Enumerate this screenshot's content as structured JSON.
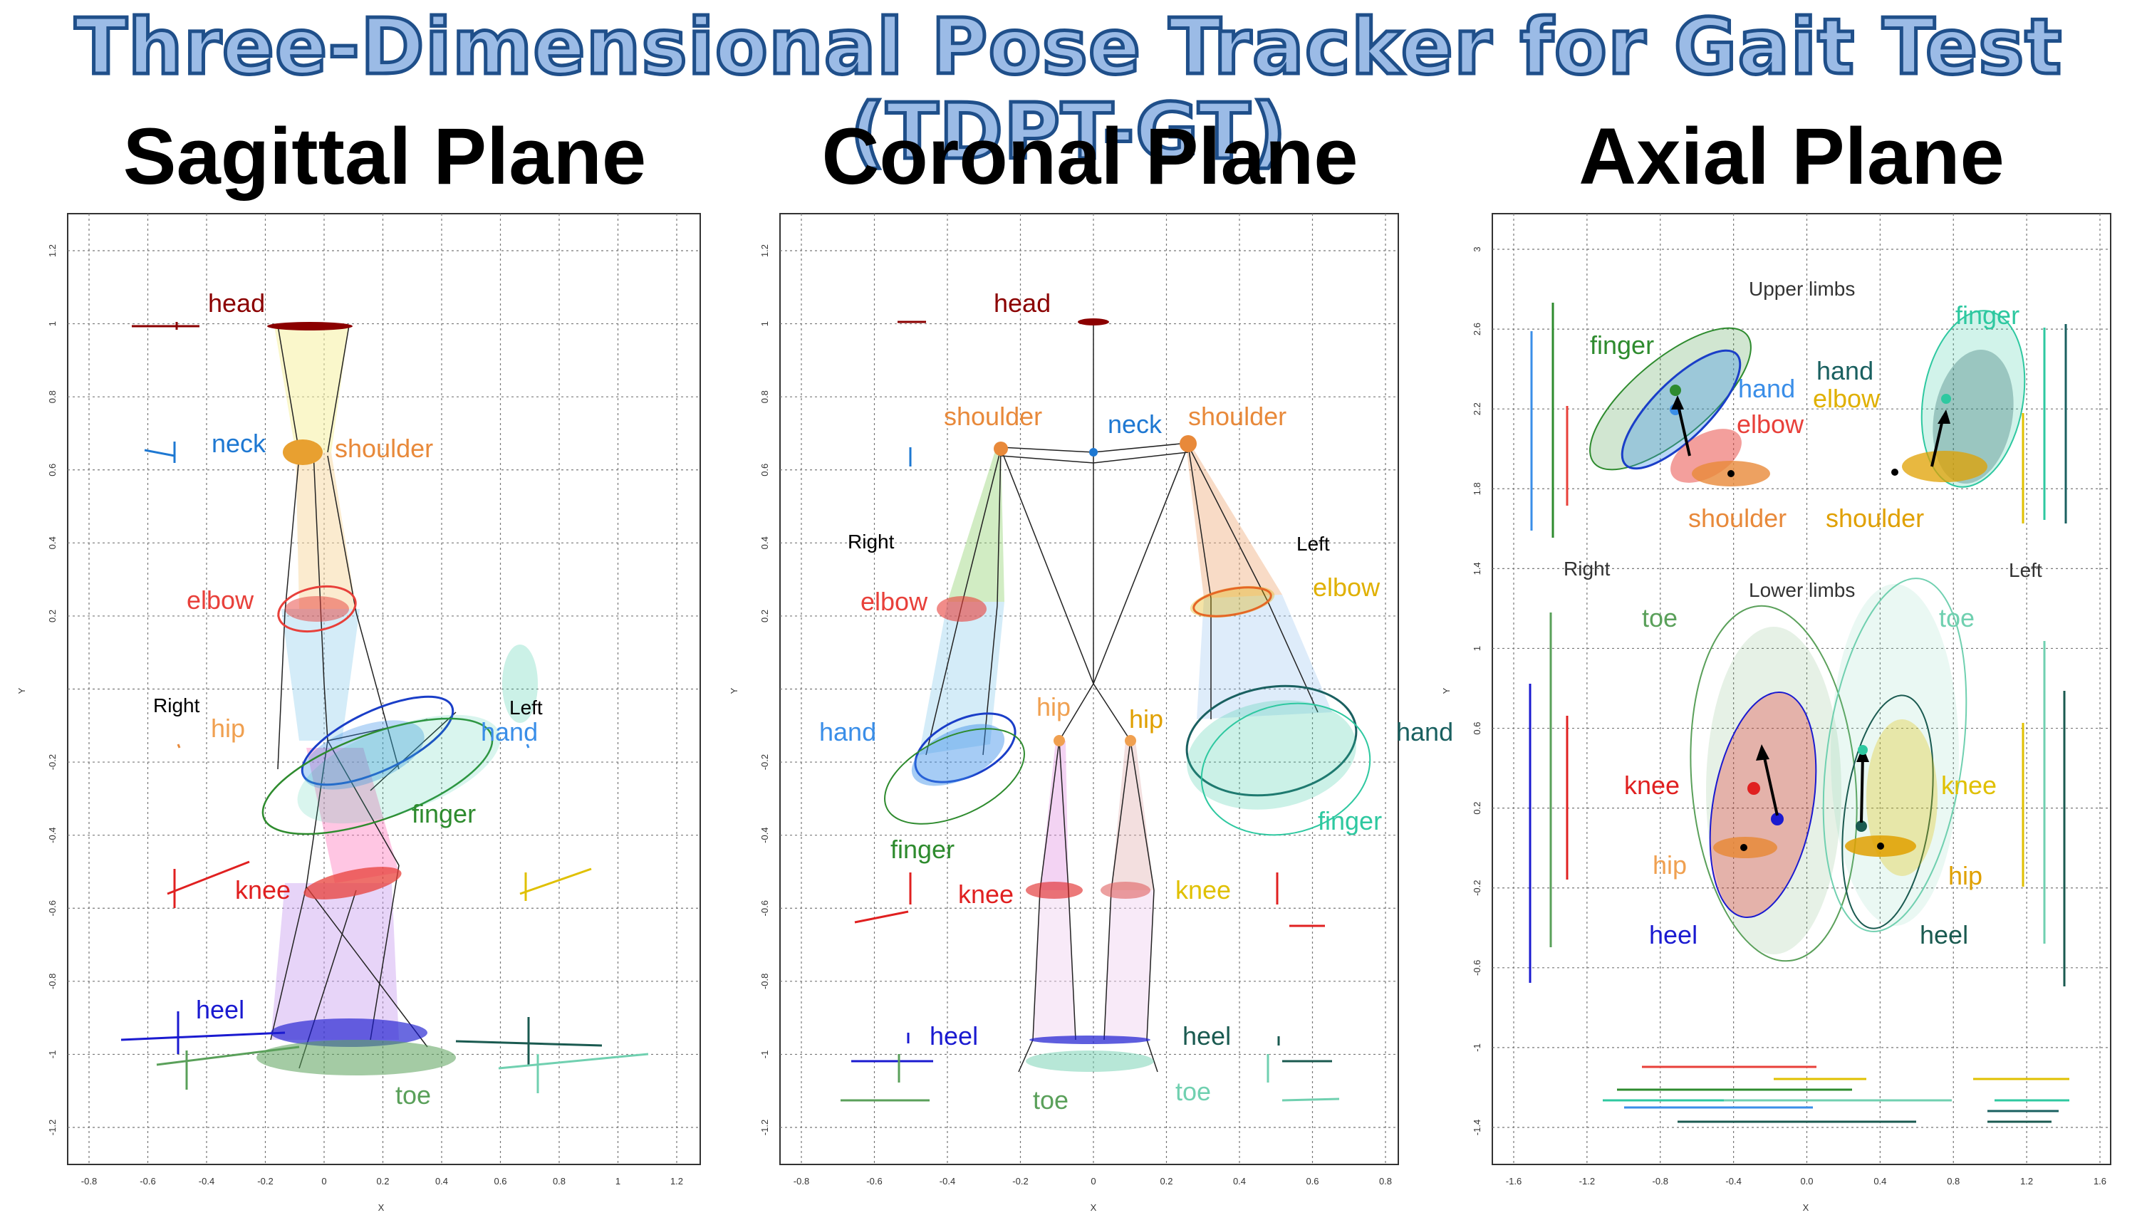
{
  "title": "Three-Dimensional Pose Tracker for Gait Test (TDPT-GT)",
  "planes": [
    {
      "title": "Sagittal Plane",
      "x_ticks": [
        "-0.8",
        "-0.6",
        "-0.4",
        "-0.2",
        "0",
        "0.2",
        "0.4",
        "0.6",
        "0.8",
        "1",
        "1.2"
      ],
      "y_ticks": [
        "1.2",
        "1",
        "0.8",
        "0.6",
        "0.4",
        "0.2",
        "",
        "-0.2",
        "-0.4",
        "-0.6",
        "-0.8",
        "-1",
        "-1.2"
      ],
      "xlabel": "X",
      "ylabel": "Y",
      "side_right": "Right",
      "side_left": "Left",
      "labels": {
        "head": "head",
        "neck": "neck",
        "shoulder": "shoulder",
        "elbow": "elbow",
        "hip": "hip",
        "hand": "hand",
        "finger": "finger",
        "knee": "knee",
        "heel": "heel",
        "toe": "toe"
      }
    },
    {
      "title": "Coronal Plane",
      "x_ticks": [
        "-0.8",
        "-0.6",
        "-0.4",
        "-0.2",
        "0",
        "0.2",
        "0.4",
        "0.6",
        "0.8"
      ],
      "y_ticks": [
        "1.2",
        "1",
        "0.8",
        "0.6",
        "0.4",
        "0.2",
        "",
        "-0.2",
        "-0.4",
        "-0.6",
        "-0.8",
        "-1",
        "-1.2"
      ],
      "xlabel": "X",
      "ylabel": "Y",
      "side_right": "Right",
      "side_left": "Left",
      "labels": {
        "head": "head",
        "neck": "neck",
        "shoulder_r": "shoulder",
        "shoulder_l": "shoulder",
        "elbow_r": "elbow",
        "elbow_l": "elbow",
        "hand_r": "hand",
        "hand_l": "hand",
        "hip_r": "hip",
        "hip_l": "hip",
        "finger_r": "finger",
        "finger_l": "finger",
        "knee_r": "knee",
        "knee_l": "knee",
        "heel_r": "heel",
        "heel_l": "heel",
        "toe_r": "toe",
        "toe_l": "toe"
      }
    },
    {
      "title": "Axial Plane",
      "x_ticks": [
        "-1.6",
        "-1.2",
        "-0.8",
        "-0.4",
        "0.0",
        "0.4",
        "0.8",
        "1.2",
        "1.6"
      ],
      "y_ticks": [
        "3",
        "2.6",
        "2.2",
        "1.8",
        "1.4",
        "1",
        "0.6",
        "0.2",
        "-0.2",
        "-0.6",
        "-1",
        "-1.4"
      ],
      "xlabel": "X",
      "ylabel": "Y",
      "upper_limbs": "Upper limbs",
      "lower_limbs": "Lower limbs",
      "side_right": "Right",
      "side_left": "Left",
      "labels": {
        "finger_r": "finger",
        "finger_l": "finger",
        "hand_r": "hand",
        "hand_l": "hand",
        "elbow_r": "elbow",
        "elbow_l": "elbow",
        "shoulder_r": "shoulder",
        "shoulder_l": "shoulder",
        "toe_r": "toe",
        "toe_l": "toe",
        "knee_r": "knee",
        "knee_l": "knee",
        "hip_r": "hip",
        "hip_l": "hip",
        "heel_r": "heel",
        "heel_l": "heel"
      }
    }
  ],
  "colors": {
    "head": "#8b0000",
    "neck": "#1e78d2",
    "shoulder": "#e8893a",
    "elbow": "#e8403a",
    "hip": "#f0a050",
    "hand_r": "#3a8ee8",
    "hand_l": "#1a6060",
    "finger_r": "#2e8b2e",
    "finger_l": "#2ec8a0",
    "knee_r": "#e02020",
    "knee_l": "#e0c000",
    "heel_r": "#1a1ad0",
    "heel_l": "#1a5a50",
    "toe_r": "#5aa05a",
    "toe_l": "#70d0b0",
    "title_fill": "#9bbbe6",
    "title_stroke": "#1f4f8a"
  }
}
